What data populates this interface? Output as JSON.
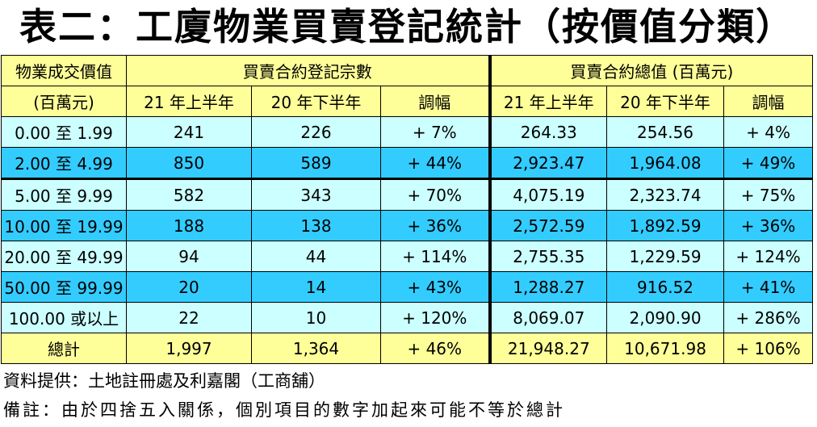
{
  "title": "表二：工廈物業買賣登記統計（按價值分類）",
  "header": {
    "col0_line1": "物業成交價值",
    "col0_line2": "(百萬元)",
    "group1": "買賣合約登記宗數",
    "group2": "買賣合約總值 (百萬元)",
    "sub": [
      "21 年上半年",
      "20 年下半年",
      "調幅",
      "21 年上半年",
      "20 年下半年",
      "調幅"
    ]
  },
  "rows": [
    {
      "label": "0.00 至 1.99",
      "c1": "241",
      "c2": "226",
      "c3": "+ 7%",
      "c4": "264.33",
      "c5": "254.56",
      "c6": "+ 4%"
    },
    {
      "label": "2.00 至 4.99",
      "c1": "850",
      "c2": "589",
      "c3": "+ 44%",
      "c4": "2,923.47",
      "c5": "1,964.08",
      "c6": "+ 49%"
    },
    {
      "label": "5.00 至 9.99",
      "c1": "582",
      "c2": "343",
      "c3": "+ 70%",
      "c4": "4,075.19",
      "c5": "2,323.74",
      "c6": "+ 75%"
    },
    {
      "label": "10.00 至 19.99",
      "c1": "188",
      "c2": "138",
      "c3": "+ 36%",
      "c4": "2,572.59",
      "c5": "1,892.59",
      "c6": "+ 36%"
    },
    {
      "label": "20.00 至 49.99",
      "c1": "94",
      "c2": "44",
      "c3": "+ 114%",
      "c4": "2,755.35",
      "c5": "1,229.59",
      "c6": "+ 124%"
    },
    {
      "label": "50.00 至 99.99",
      "c1": "20",
      "c2": "14",
      "c3": "+ 43%",
      "c4": "1,288.27",
      "c5": "916.52",
      "c6": "+ 41%"
    },
    {
      "label": "100.00 或以上",
      "c1": "22",
      "c2": "10",
      "c3": "+ 120%",
      "c4": "8,069.07",
      "c5": "2,090.90",
      "c6": "+ 286%"
    }
  ],
  "total": {
    "label": "總計",
    "c1": "1,997",
    "c2": "1,364",
    "c3": "+ 46%",
    "c4": "21,948.27",
    "c5": "10,671.98",
    "c6": "+ 106%"
  },
  "source_note": "資料提供：土地註冊處及利嘉閣（工商舖）",
  "remark_note": "備註：由於四捨五入關係，個別項目的數字加起來可能不等於總計",
  "colors": {
    "header_bg": "#ffff99",
    "row_light": "#ccffff",
    "row_dark": "#33ccff"
  }
}
